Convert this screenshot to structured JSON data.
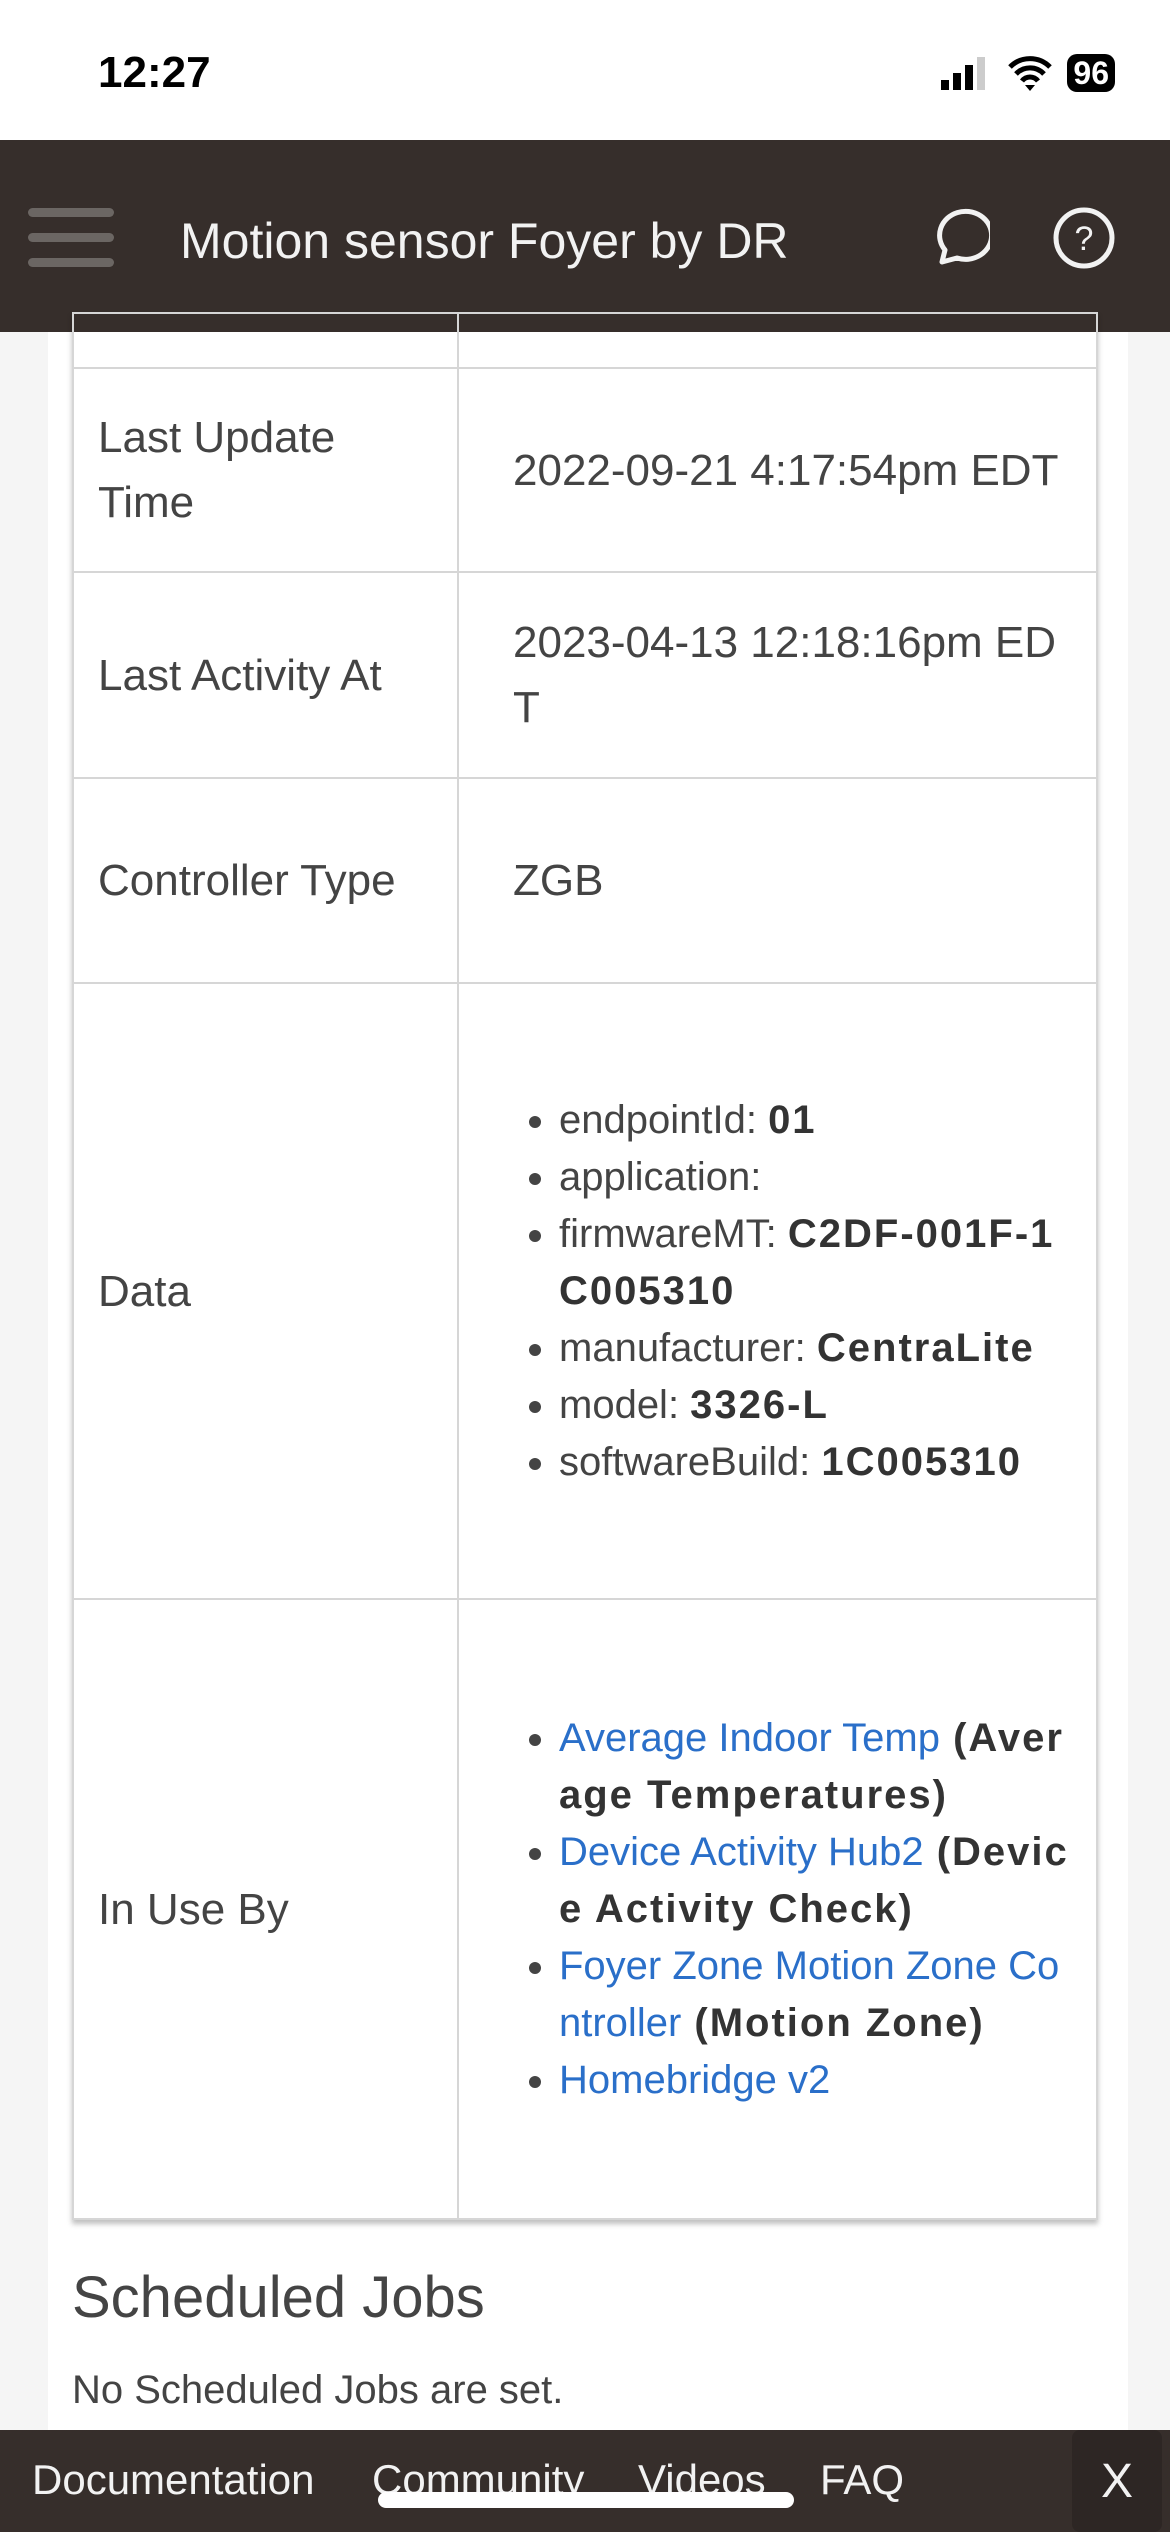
{
  "status": {
    "time": "12:27",
    "battery": "96"
  },
  "header": {
    "title": "Motion sensor Foyer by DR",
    "icons": [
      "menu-icon",
      "chat-bubble-icon",
      "help-icon"
    ]
  },
  "rows": [
    {
      "key": "Last Update Time",
      "value": "2022-09-21 4:17:54pm EDT"
    },
    {
      "key": "Last Activity At",
      "value": "2023-04-13 12:18:16pm EDT"
    },
    {
      "key": "Controller Type",
      "value": "ZGB"
    }
  ],
  "data_row": {
    "key": "Data",
    "items": [
      {
        "label": "endpointId: ",
        "value": "01"
      },
      {
        "label": "application:",
        "value": ""
      },
      {
        "label": "firmwareMT: ",
        "value": "C2DF-001F-1C005310"
      },
      {
        "label": "manufacturer: ",
        "value": "CentraLite"
      },
      {
        "label": "model: ",
        "value": "3326-L"
      },
      {
        "label": "softwareBuild: ",
        "value": "1C005310"
      }
    ]
  },
  "in_use": {
    "key": "In Use By",
    "items": [
      {
        "link": "Average Indoor Temp",
        "type": " (Average Temperatures)"
      },
      {
        "link": "Device Activity Hub2",
        "type": " (Device Activity Check)"
      },
      {
        "link": "Foyer Zone Motion Zone Controller",
        "type": " (Motion Zone)"
      },
      {
        "link": "Homebridge v2",
        "type": ""
      }
    ]
  },
  "scheduled": {
    "heading": "Scheduled Jobs",
    "text": "No Scheduled Jobs are set."
  },
  "footer": {
    "links": [
      "Documentation",
      "Community",
      "Videos",
      "FAQ"
    ],
    "close": "X"
  },
  "colors": {
    "header": "#362e2b",
    "link": "#2a6fc9"
  }
}
